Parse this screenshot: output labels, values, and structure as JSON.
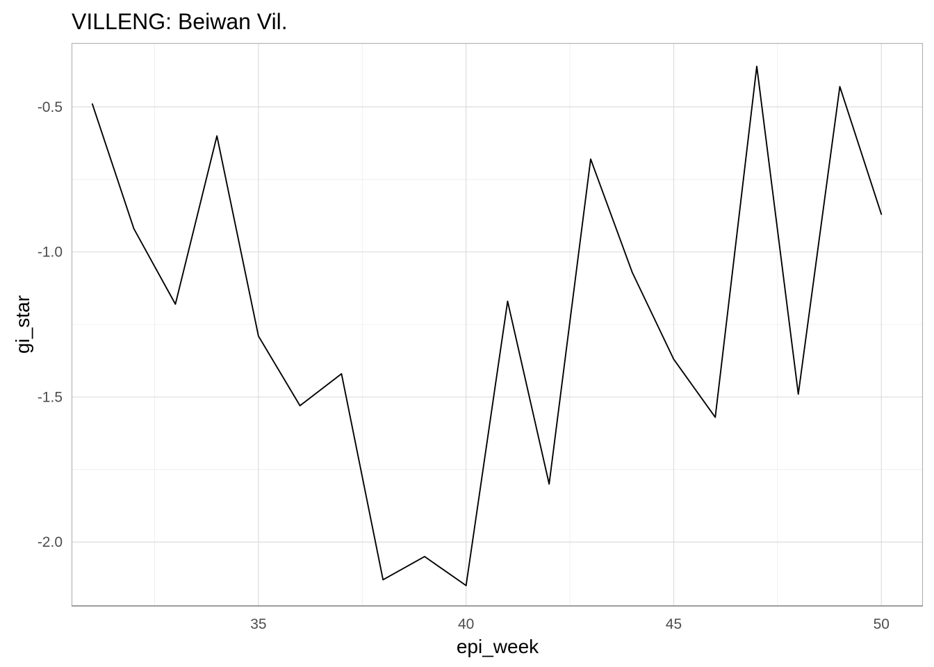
{
  "chart_data": {
    "type": "line",
    "title": "VILLENG: Beiwan Vil.",
    "xlabel": "epi_week",
    "ylabel": "gi_star",
    "xlim": [
      30.5,
      51
    ],
    "ylim": [
      -2.22,
      -0.28
    ],
    "x_ticks": [
      35,
      40,
      45,
      50
    ],
    "x_tick_labels": [
      "35",
      "40",
      "45",
      "50"
    ],
    "x_minor_ticks": [
      32.5,
      37.5,
      42.5,
      47.5
    ],
    "y_ticks": [
      -0.5,
      -1.0,
      -1.5,
      -2.0
    ],
    "y_tick_labels": [
      "-0.5",
      "-1.0",
      "-1.5",
      "-2.0"
    ],
    "y_minor_ticks": [
      -0.75,
      -1.25,
      -1.75
    ],
    "grid": true,
    "legend": "none",
    "x": [
      31,
      32,
      33,
      34,
      35,
      36,
      37,
      38,
      39,
      40,
      41,
      42,
      43,
      44,
      45,
      46,
      47,
      48,
      49,
      50
    ],
    "series": [
      {
        "values": [
          -0.49,
          -0.92,
          -1.18,
          -0.6,
          -1.29,
          -1.53,
          -1.42,
          -2.13,
          -2.05,
          -2.15,
          -1.17,
          -1.8,
          -0.68,
          -1.07,
          -1.37,
          -1.57,
          -0.36,
          -1.49,
          -0.43,
          -0.87
        ],
        "color": "#000000"
      }
    ]
  }
}
